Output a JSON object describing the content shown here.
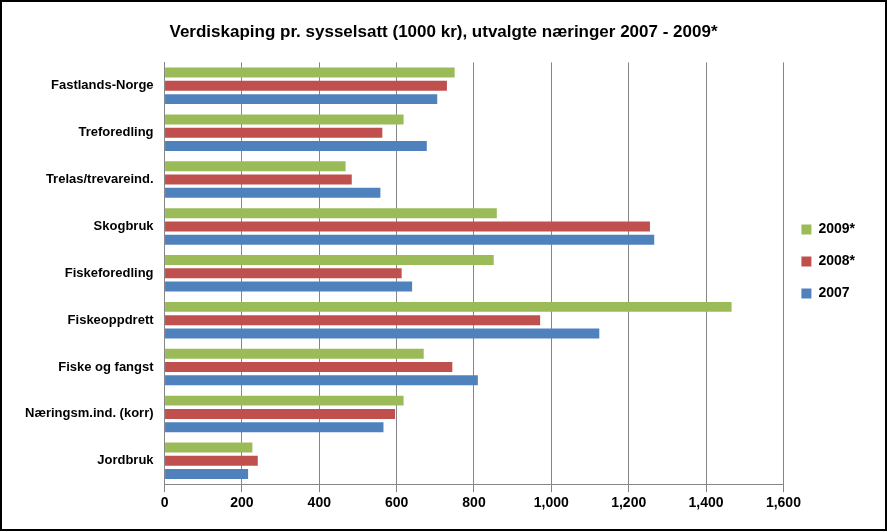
{
  "chart_data": {
    "type": "bar",
    "orientation": "horizontal",
    "title": "Verdiskaping pr. sysselsatt (1000 kr), utvalgte næringer 2007 - 2009*",
    "categories": [
      "Fastlands-Norge",
      "Treforedling",
      "Trelas/trevareind.",
      "Skogbruk",
      "Fiskeforedling",
      "Fiskeoppdrett",
      "Fiske og fangst",
      "Næringsm.ind. (korr)",
      "Jordbruk"
    ],
    "series": [
      {
        "name": "2009*",
        "color": "#9BBB59",
        "values": [
          750,
          618,
          468,
          859,
          851,
          1466,
          670,
          618,
          227
        ]
      },
      {
        "name": "2008*",
        "color": "#C0504D",
        "values": [
          730,
          563,
          484,
          1255,
          613,
          971,
          744,
          596,
          241
        ]
      },
      {
        "name": "2007",
        "color": "#4F81BD",
        "values": [
          705,
          678,
          558,
          1266,
          640,
          1124,
          810,
          566,
          216
        ]
      }
    ],
    "xlim": [
      0,
      1600
    ],
    "xticks": [
      0,
      200,
      400,
      600,
      800,
      1000,
      1200,
      1400,
      1600
    ],
    "grid": true,
    "legend": "right"
  }
}
